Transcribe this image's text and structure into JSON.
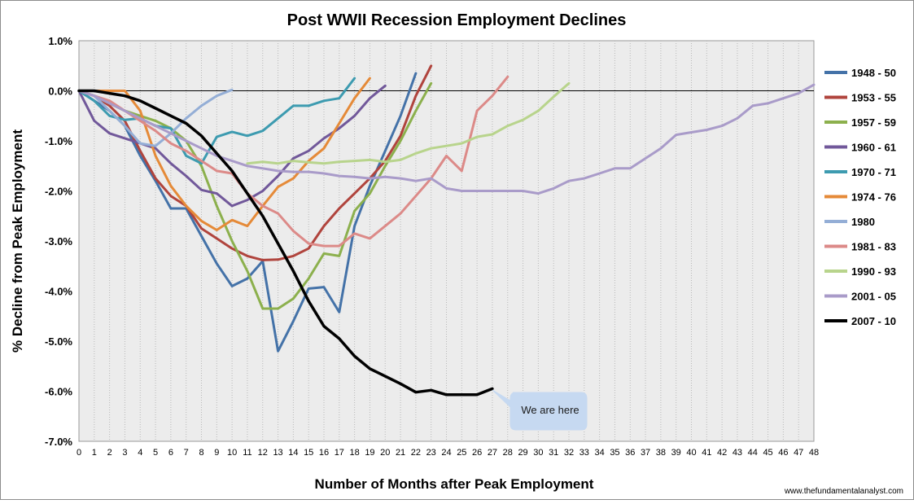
{
  "chart_data": {
    "type": "line",
    "title": "Post WWII Recession Employment Declines",
    "xlabel": "Number of Months  after Peak Employment",
    "ylabel": "% Decline from Peak Employment",
    "xlim": [
      0,
      48
    ],
    "ylim": [
      -7,
      1
    ],
    "y_ticks": [
      "1.0%",
      "0.0%",
      "-1.0%",
      "-2.0%",
      "-3.0%",
      "-4.0%",
      "-5.0%",
      "-6.0%",
      "-7.0%"
    ],
    "x_ticks": [
      "0",
      "1",
      "2",
      "3",
      "4",
      "5",
      "6",
      "7",
      "8",
      "9",
      "10",
      "11",
      "12",
      "13",
      "14",
      "15",
      "16",
      "17",
      "18",
      "19",
      "20",
      "21",
      "22",
      "23",
      "24",
      "25",
      "26",
      "27",
      "28",
      "29",
      "30",
      "31",
      "32",
      "33",
      "34",
      "35",
      "36",
      "37",
      "38",
      "39",
      "40",
      "41",
      "42",
      "43",
      "44",
      "45",
      "46",
      "47",
      "48"
    ],
    "grid": "vertical dotted",
    "legend_position": "right",
    "annotation": "We are here",
    "credit": "www.thefundamentalanalyst.com",
    "series": [
      {
        "name": "1948 - 50",
        "color": "#4472a8",
        "x": [
          0,
          1,
          2,
          3,
          4,
          5,
          6,
          7,
          8,
          9,
          10,
          11,
          12,
          13,
          14,
          15,
          16,
          17,
          18,
          19,
          20,
          21,
          22
        ],
        "values": [
          0,
          -0.2,
          -0.4,
          -0.7,
          -1.3,
          -1.8,
          -2.35,
          -2.35,
          -2.9,
          -3.45,
          -3.9,
          -3.75,
          -3.4,
          -5.2,
          -4.6,
          -3.95,
          -3.92,
          -4.42,
          -2.7,
          -1.9,
          -1.2,
          -0.5,
          0.35
        ]
      },
      {
        "name": "1953 - 55",
        "color": "#b0443d",
        "x": [
          0,
          1,
          2,
          3,
          4,
          5,
          6,
          7,
          8,
          9,
          10,
          11,
          12,
          13,
          14,
          15,
          16,
          17,
          18,
          19,
          20,
          21,
          22,
          23
        ],
        "values": [
          0,
          -0.1,
          -0.3,
          -0.6,
          -1.2,
          -1.75,
          -2.1,
          -2.3,
          -2.75,
          -2.95,
          -3.15,
          -3.3,
          -3.38,
          -3.37,
          -3.3,
          -3.15,
          -2.7,
          -2.35,
          -2.05,
          -1.75,
          -1.4,
          -0.9,
          -0.1,
          0.5
        ]
      },
      {
        "name": "1957 - 59",
        "color": "#8cb04d",
        "x": [
          0,
          1,
          2,
          3,
          4,
          5,
          6,
          7,
          8,
          9,
          10,
          11,
          12,
          13,
          14,
          15,
          16,
          17,
          18,
          19,
          20,
          21,
          22,
          23
        ],
        "values": [
          0,
          -0.1,
          -0.25,
          -0.4,
          -0.5,
          -0.6,
          -0.75,
          -1.0,
          -1.5,
          -2.3,
          -3.0,
          -3.6,
          -4.35,
          -4.35,
          -4.15,
          -3.75,
          -3.25,
          -3.3,
          -2.4,
          -2.05,
          -1.5,
          -1.0,
          -0.4,
          0.15
        ]
      },
      {
        "name": "1960 - 61",
        "color": "#71589a",
        "x": [
          0,
          1,
          2,
          3,
          4,
          5,
          6,
          7,
          8,
          9,
          10,
          11,
          12,
          13,
          14,
          15,
          16,
          17,
          18,
          19,
          20
        ],
        "values": [
          0,
          -0.6,
          -0.85,
          -0.95,
          -1.05,
          -1.15,
          -1.45,
          -1.7,
          -1.98,
          -2.05,
          -2.3,
          -2.18,
          -2.0,
          -1.7,
          -1.35,
          -1.2,
          -0.95,
          -0.75,
          -0.5,
          -0.15,
          0.1
        ]
      },
      {
        "name": "1970 - 71",
        "color": "#3d9bb0",
        "x": [
          0,
          1,
          2,
          3,
          4,
          5,
          6,
          7,
          8,
          9,
          10,
          11,
          12,
          13,
          14,
          15,
          16,
          17,
          18
        ],
        "values": [
          0,
          -0.2,
          -0.5,
          -0.58,
          -0.55,
          -0.7,
          -0.75,
          -1.3,
          -1.45,
          -0.92,
          -0.82,
          -0.9,
          -0.8,
          -0.55,
          -0.3,
          -0.3,
          -0.2,
          -0.15,
          0.25
        ]
      },
      {
        "name": "1974 - 76",
        "color": "#e58a38",
        "x": [
          0,
          1,
          2,
          3,
          4,
          5,
          6,
          7,
          8,
          9,
          10,
          11,
          12,
          13,
          14,
          15,
          16,
          17,
          18,
          19
        ],
        "values": [
          0,
          0,
          0,
          0,
          -0.4,
          -1.3,
          -1.9,
          -2.3,
          -2.6,
          -2.78,
          -2.58,
          -2.7,
          -2.3,
          -1.92,
          -1.75,
          -1.4,
          -1.15,
          -0.65,
          -0.15,
          0.25
        ]
      },
      {
        "name": "1980",
        "color": "#94aed6",
        "x": [
          0,
          1,
          2,
          3,
          4,
          5,
          6,
          7,
          8,
          9,
          10
        ],
        "values": [
          0,
          -0.1,
          -0.4,
          -0.7,
          -1.05,
          -1.1,
          -0.85,
          -0.55,
          -0.3,
          -0.1,
          0.02
        ]
      },
      {
        "name": "1981 - 83",
        "color": "#dc8a88",
        "x": [
          0,
          1,
          2,
          3,
          4,
          5,
          6,
          7,
          8,
          9,
          10,
          11,
          12,
          13,
          14,
          15,
          16,
          17,
          18,
          19,
          20,
          21,
          22,
          23,
          24,
          25,
          26,
          27,
          28
        ],
        "values": [
          0,
          -0.1,
          -0.2,
          -0.4,
          -0.6,
          -0.8,
          -1.05,
          -1.2,
          -1.4,
          -1.6,
          -1.65,
          -2.05,
          -2.3,
          -2.45,
          -2.8,
          -3.05,
          -3.1,
          -3.1,
          -2.85,
          -2.95,
          -2.7,
          -2.45,
          -2.1,
          -1.75,
          -1.3,
          -1.6,
          -0.4,
          -0.1,
          0.28
        ]
      },
      {
        "name": "1990 - 93",
        "color": "#b8d48c",
        "x": [
          11,
          12,
          13,
          14,
          15,
          16,
          17,
          18,
          19,
          20,
          21,
          22,
          23,
          24,
          25,
          26,
          27,
          28,
          29,
          30,
          31,
          32
        ],
        "values": [
          -1.45,
          -1.42,
          -1.45,
          -1.4,
          -1.43,
          -1.45,
          -1.42,
          -1.4,
          -1.38,
          -1.42,
          -1.38,
          -1.25,
          -1.15,
          -1.1,
          -1.05,
          -0.92,
          -0.87,
          -0.7,
          -0.58,
          -0.4,
          -0.12,
          0.15
        ]
      },
      {
        "name": "2001 - 05",
        "color": "#a99bc9",
        "x": [
          0,
          1,
          2,
          3,
          4,
          5,
          6,
          7,
          8,
          9,
          10,
          11,
          12,
          13,
          14,
          15,
          16,
          17,
          18,
          19,
          20,
          21,
          22,
          23,
          24,
          25,
          26,
          27,
          28,
          29,
          30,
          31,
          32,
          33,
          34,
          35,
          36,
          37,
          38,
          39,
          40,
          41,
          42,
          43,
          44,
          45,
          46,
          47,
          48
        ],
        "values": [
          0,
          -0.1,
          -0.25,
          -0.4,
          -0.55,
          -0.7,
          -0.85,
          -1.0,
          -1.15,
          -1.3,
          -1.4,
          -1.5,
          -1.55,
          -1.6,
          -1.62,
          -1.62,
          -1.65,
          -1.7,
          -1.72,
          -1.75,
          -1.72,
          -1.75,
          -1.8,
          -1.75,
          -1.95,
          -2.0,
          -2.0,
          -2.0,
          -2.0,
          -2.0,
          -2.05,
          -1.95,
          -1.8,
          -1.75,
          -1.65,
          -1.55,
          -1.55,
          -1.35,
          -1.15,
          -0.88,
          -0.83,
          -0.78,
          -0.7,
          -0.55,
          -0.3,
          -0.25,
          -0.15,
          -0.05,
          0.12
        ]
      },
      {
        "name": "2007 - 10",
        "color": "#000000",
        "x": [
          0,
          1,
          2,
          3,
          4,
          5,
          6,
          7,
          8,
          9,
          10,
          11,
          12,
          13,
          14,
          15,
          16,
          17,
          18,
          19,
          20,
          21,
          22,
          23,
          24,
          25,
          26,
          27
        ],
        "values": [
          0,
          0,
          -0.05,
          -0.1,
          -0.2,
          -0.35,
          -0.5,
          -0.65,
          -0.9,
          -1.25,
          -1.6,
          -2.05,
          -2.5,
          -3.05,
          -3.6,
          -4.2,
          -4.7,
          -4.95,
          -5.3,
          -5.55,
          -5.7,
          -5.85,
          -6.02,
          -5.98,
          -6.07,
          -6.07,
          -6.07,
          -5.95
        ]
      }
    ]
  }
}
